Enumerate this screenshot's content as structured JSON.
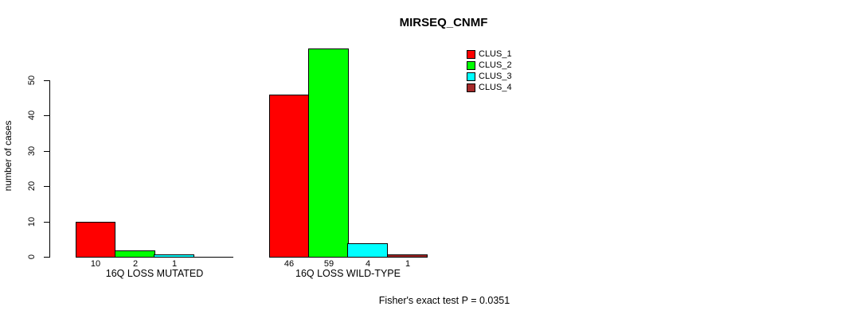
{
  "chart_data": {
    "type": "bar",
    "title": "MIRSEQ_CNMF",
    "ylabel": "number of cases",
    "xlabel": "",
    "ylim": [
      0,
      59
    ],
    "yticks": [
      0,
      10,
      20,
      30,
      40,
      50
    ],
    "grid": false,
    "legend_position": "top-right",
    "groups": [
      "16Q LOSS MUTATED",
      "16Q LOSS WILD-TYPE"
    ],
    "series": [
      {
        "name": "CLUS_1",
        "color": "#ff0000",
        "values": [
          10,
          46
        ]
      },
      {
        "name": "CLUS_2",
        "color": "#00ff00",
        "values": [
          2,
          59
        ]
      },
      {
        "name": "CLUS_3",
        "color": "#00ffff",
        "values": [
          1,
          4
        ]
      },
      {
        "name": "CLUS_4",
        "color": "#a52a2a",
        "values": [
          0,
          1
        ]
      }
    ],
    "zero_bars_hidden": true,
    "annotation": "Fisher's exact test P = 0.0351",
    "colors": {
      "background": "#ffffff",
      "axis": "#000000",
      "text": "#000000"
    }
  }
}
